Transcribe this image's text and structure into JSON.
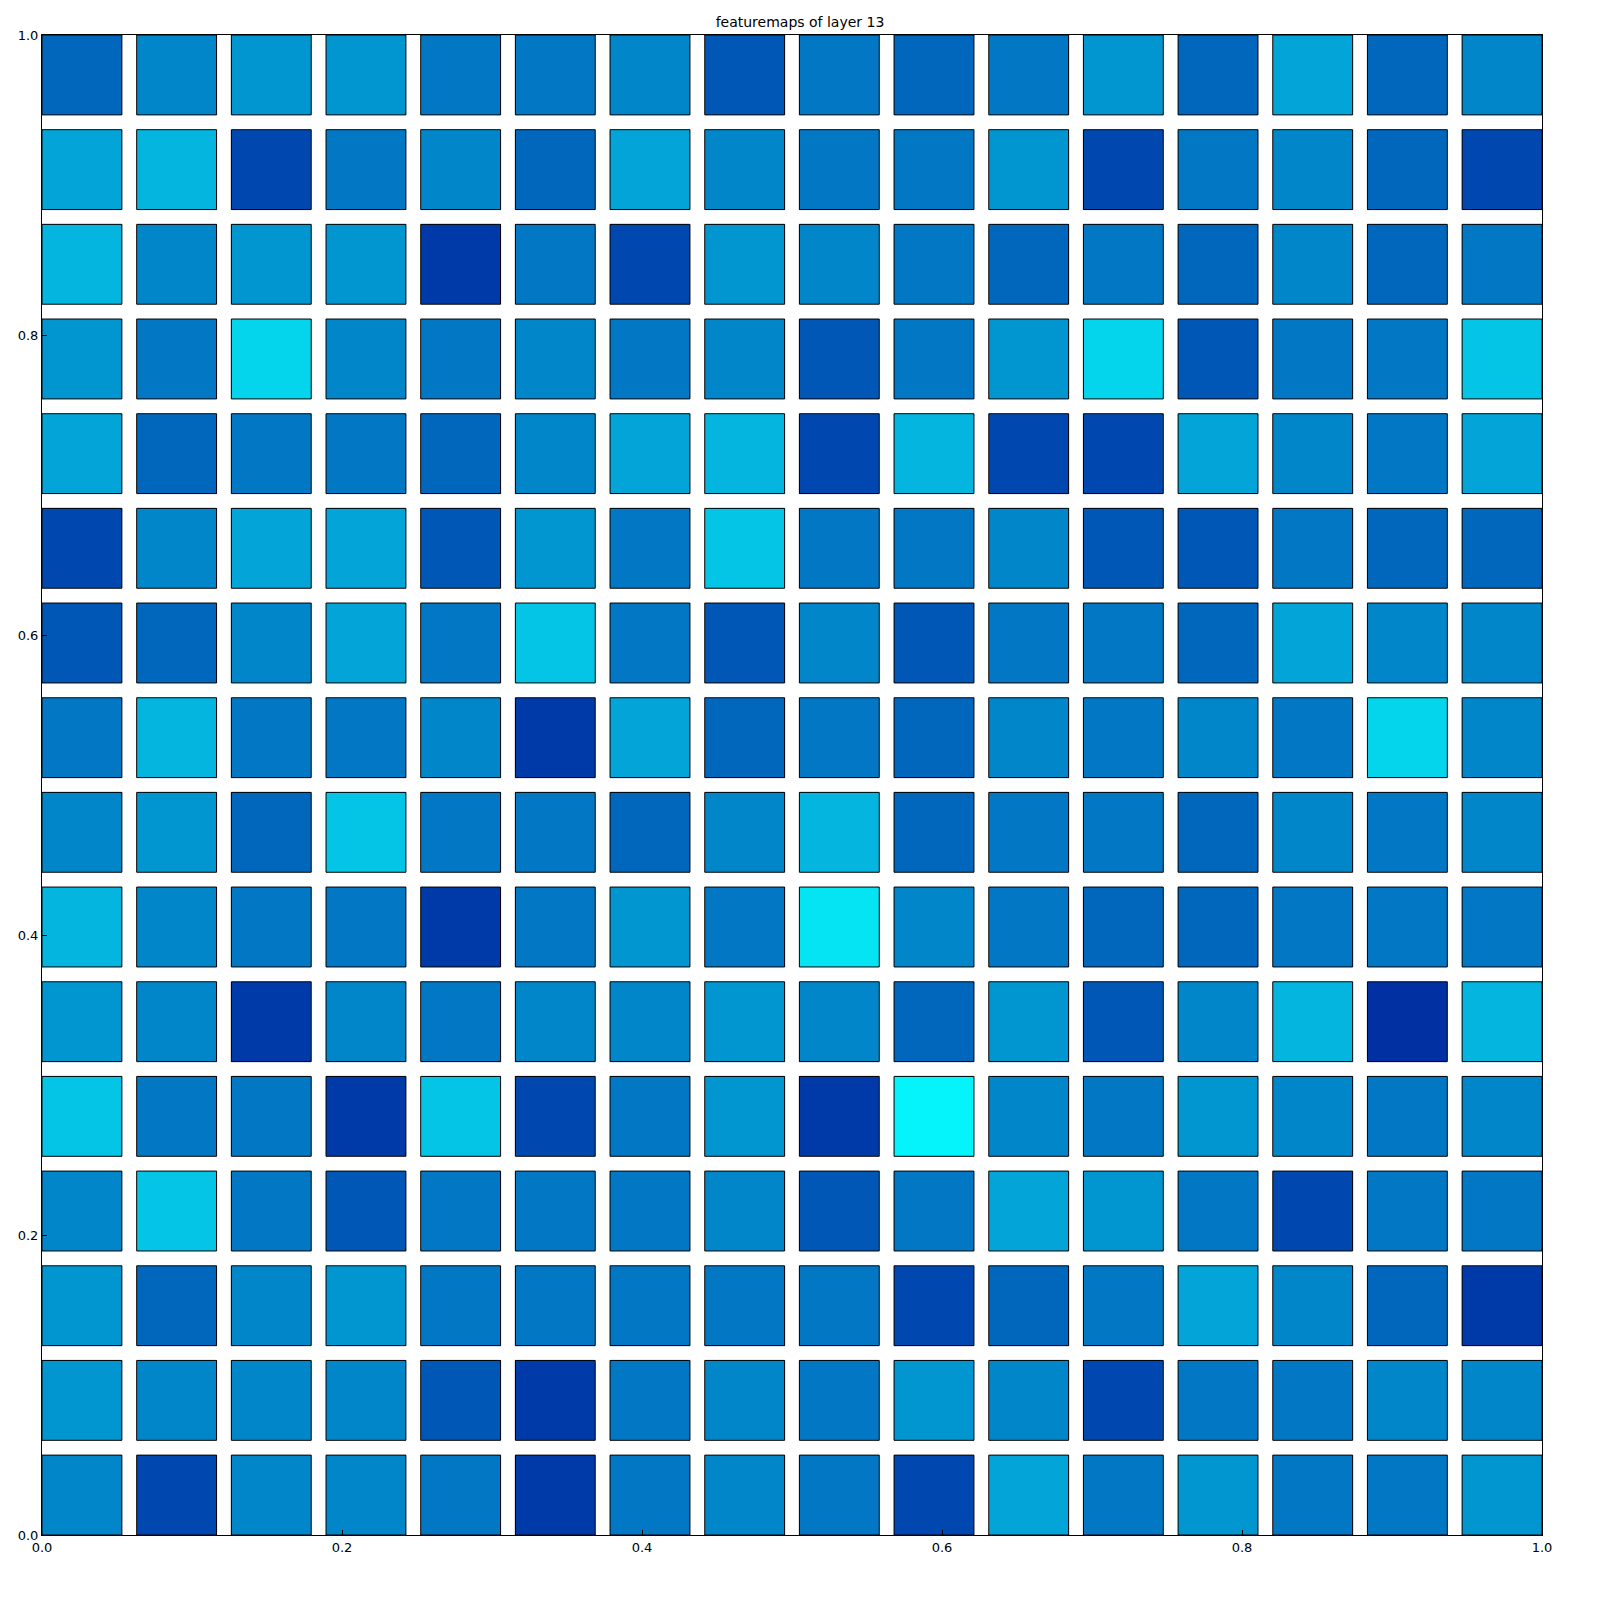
{
  "chart_data": {
    "type": "heatmap_grid",
    "title": "featuremaps of layer 13",
    "color": "jet",
    "grid": false,
    "zlim": [
      0,
      1
    ],
    "xlim": [
      0,
      1
    ],
    "ylim": [
      0,
      1
    ],
    "xticks": [
      {
        "value": 0,
        "label": "0.0"
      },
      {
        "value": 0.2,
        "label": "0.2"
      },
      {
        "value": 0.4,
        "label": "0.4"
      },
      {
        "value": 0.6,
        "label": "0.6"
      },
      {
        "value": 0.8,
        "label": "0.8"
      },
      {
        "value": 1,
        "label": "1.0"
      }
    ],
    "yticks": [
      {
        "value": 0,
        "label": "0.0"
      },
      {
        "value": 0.2,
        "label": "0.2"
      },
      {
        "value": 0.4,
        "label": "0.4"
      },
      {
        "value": 0.6,
        "label": "0.6"
      },
      {
        "value": 0.8,
        "label": "0.8"
      },
      {
        "value": 1,
        "label": "1.0"
      }
    ],
    "cells": [
      [
        0.18,
        0.22,
        0.24,
        0.24,
        0.2,
        0.2,
        0.22,
        0.16,
        0.2,
        0.18,
        0.2,
        0.24,
        0.18,
        0.26,
        0.18,
        0.22
      ],
      [
        0.26,
        0.28,
        0.14,
        0.2,
        0.22,
        0.18,
        0.26,
        0.22,
        0.2,
        0.2,
        0.24,
        0.14,
        0.2,
        0.22,
        0.18,
        0.14
      ],
      [
        0.28,
        0.22,
        0.24,
        0.24,
        0.12,
        0.2,
        0.14,
        0.24,
        0.22,
        0.2,
        0.18,
        0.2,
        0.18,
        0.22,
        0.18,
        0.2
      ],
      [
        0.24,
        0.2,
        0.32,
        0.22,
        0.2,
        0.22,
        0.2,
        0.22,
        0.16,
        0.2,
        0.24,
        0.32,
        0.16,
        0.2,
        0.2,
        0.3
      ],
      [
        0.26,
        0.18,
        0.2,
        0.2,
        0.18,
        0.22,
        0.26,
        0.28,
        0.14,
        0.28,
        0.14,
        0.14,
        0.26,
        0.22,
        0.2,
        0.26
      ],
      [
        0.14,
        0.22,
        0.26,
        0.26,
        0.16,
        0.24,
        0.2,
        0.3,
        0.2,
        0.2,
        0.22,
        0.16,
        0.16,
        0.2,
        0.18,
        0.18
      ],
      [
        0.16,
        0.18,
        0.22,
        0.26,
        0.2,
        0.3,
        0.2,
        0.16,
        0.22,
        0.16,
        0.2,
        0.2,
        0.18,
        0.26,
        0.22,
        0.22
      ],
      [
        0.2,
        0.28,
        0.2,
        0.2,
        0.22,
        0.12,
        0.26,
        0.18,
        0.2,
        0.18,
        0.22,
        0.2,
        0.22,
        0.2,
        0.32,
        0.22
      ],
      [
        0.22,
        0.24,
        0.18,
        0.3,
        0.2,
        0.2,
        0.18,
        0.22,
        0.28,
        0.18,
        0.2,
        0.2,
        0.18,
        0.22,
        0.2,
        0.22
      ],
      [
        0.28,
        0.22,
        0.2,
        0.2,
        0.12,
        0.2,
        0.24,
        0.2,
        0.34,
        0.22,
        0.2,
        0.18,
        0.18,
        0.2,
        0.2,
        0.2
      ],
      [
        0.24,
        0.22,
        0.12,
        0.22,
        0.2,
        0.22,
        0.22,
        0.24,
        0.22,
        0.18,
        0.24,
        0.16,
        0.22,
        0.28,
        0.1,
        0.28
      ],
      [
        0.3,
        0.2,
        0.2,
        0.12,
        0.3,
        0.14,
        0.2,
        0.24,
        0.12,
        0.36,
        0.22,
        0.2,
        0.24,
        0.22,
        0.2,
        0.22
      ],
      [
        0.22,
        0.3,
        0.2,
        0.16,
        0.2,
        0.2,
        0.2,
        0.22,
        0.16,
        0.2,
        0.26,
        0.24,
        0.2,
        0.14,
        0.2,
        0.2
      ],
      [
        0.24,
        0.18,
        0.22,
        0.24,
        0.2,
        0.2,
        0.2,
        0.2,
        0.2,
        0.14,
        0.18,
        0.2,
        0.26,
        0.22,
        0.18,
        0.12
      ],
      [
        0.24,
        0.22,
        0.22,
        0.22,
        0.16,
        0.12,
        0.2,
        0.22,
        0.2,
        0.24,
        0.22,
        0.14,
        0.2,
        0.2,
        0.22,
        0.22
      ],
      [
        0.22,
        0.14,
        0.22,
        0.22,
        0.2,
        0.12,
        0.2,
        0.22,
        0.2,
        0.14,
        0.26,
        0.2,
        0.24,
        0.2,
        0.2,
        0.24
      ]
    ]
  }
}
